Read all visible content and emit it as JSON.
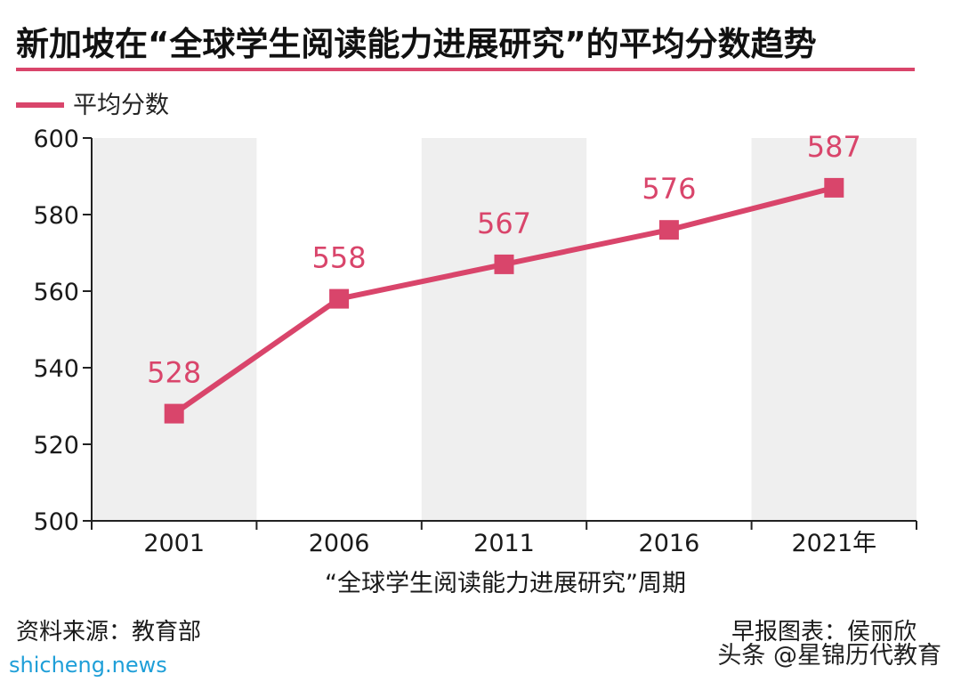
{
  "chart_data": {
    "type": "line",
    "title": "新加坡在“全球学生阅读能力进展研究”的平均分数趋势",
    "categories": [
      "2001",
      "2006",
      "2011",
      "2016",
      "2021年"
    ],
    "series": [
      {
        "name": "平均分数",
        "values": [
          528,
          558,
          567,
          576,
          587
        ]
      }
    ],
    "data_labels": [
      "528",
      "558",
      "567",
      "576",
      "587"
    ],
    "xlabel": "“全球学生阅读能力进展研究”周期",
    "ylabel": "",
    "ylim": [
      500,
      600
    ],
    "yticks": [
      500,
      520,
      540,
      560,
      580,
      600
    ],
    "ytick_labels": [
      "500",
      "520",
      "540",
      "560",
      "580",
      "600"
    ],
    "grid": false,
    "legend_position": "top-left",
    "colors": {
      "line": "#d9456b",
      "label": "#d9456b",
      "band": "#efefef",
      "title_rule": "#d9456b"
    }
  },
  "footer": {
    "source": "资料来源：教育部",
    "credit": "早报图表：侯丽欣",
    "toutiao": "头条 @星锦历代教育",
    "watermark": "shicheng.news"
  }
}
